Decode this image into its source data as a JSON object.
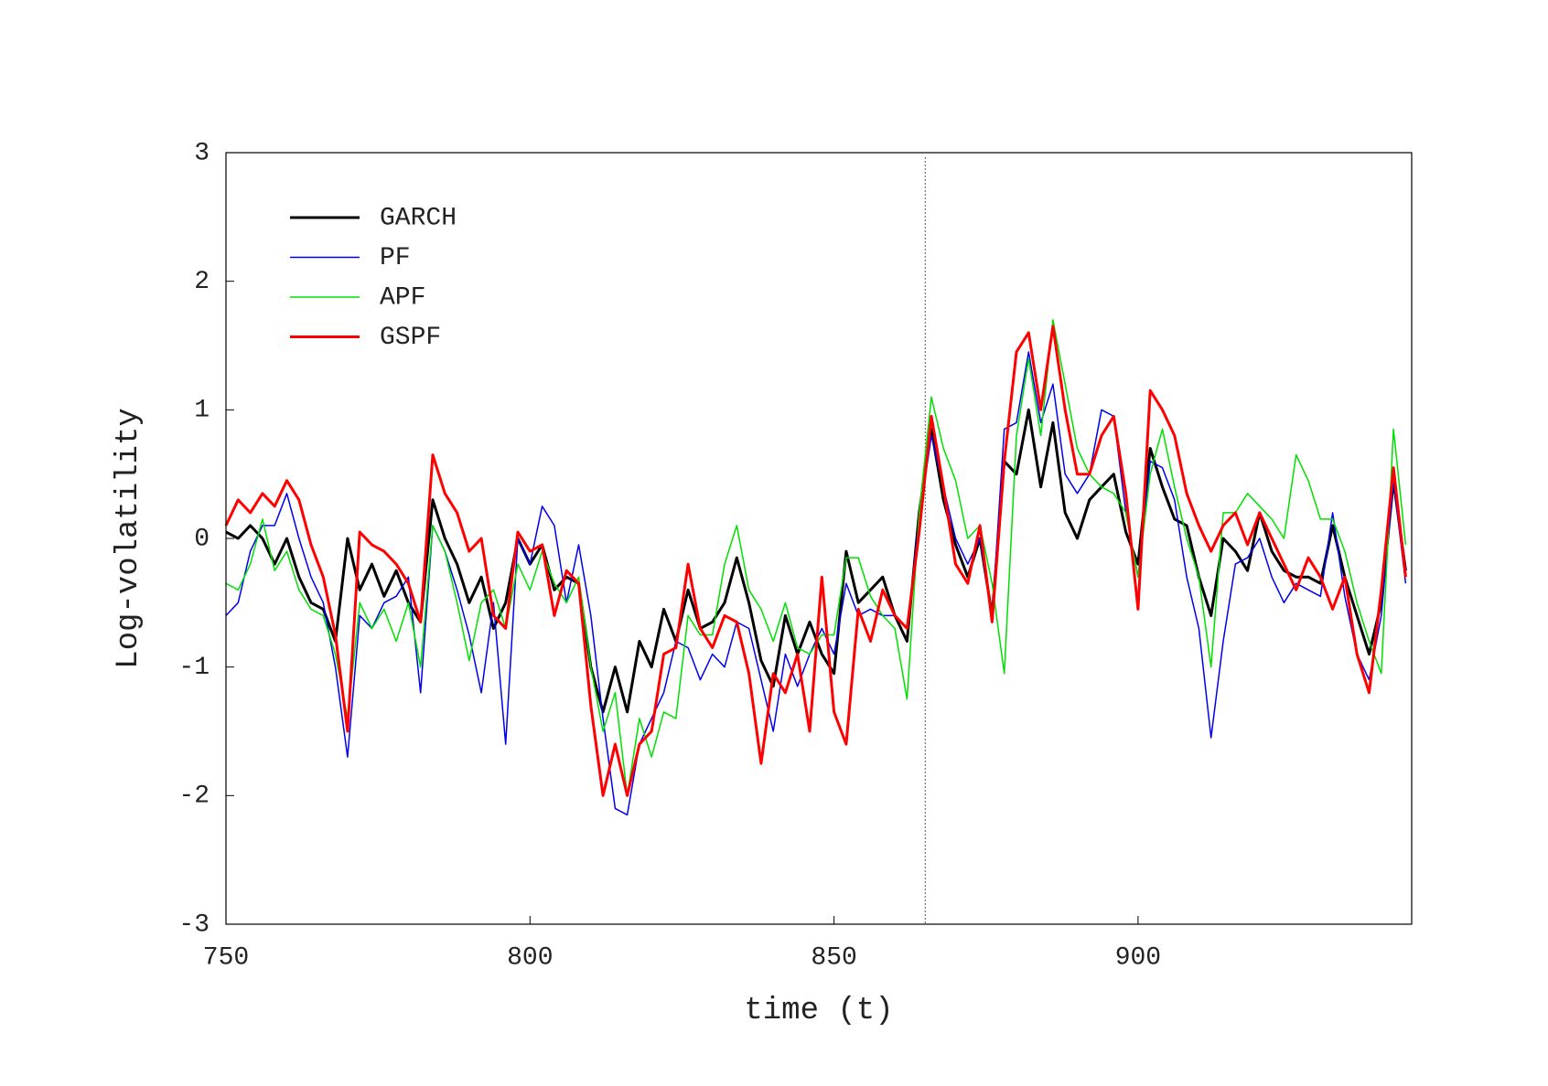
{
  "chart_data": {
    "type": "line",
    "xlabel": "time (t)",
    "ylabel": "Log-volatility",
    "xlim": [
      750,
      945
    ],
    "ylim": [
      -3,
      3
    ],
    "xticks": [
      750,
      800,
      850,
      900
    ],
    "yticks": [
      -3,
      -2,
      -1,
      0,
      1,
      2,
      3
    ],
    "vline": 865,
    "legend": "upper left",
    "x": [
      750,
      752,
      754,
      756,
      758,
      760,
      762,
      764,
      766,
      768,
      770,
      772,
      774,
      776,
      778,
      780,
      782,
      784,
      786,
      788,
      790,
      792,
      794,
      796,
      798,
      800,
      802,
      804,
      806,
      808,
      810,
      812,
      814,
      816,
      818,
      820,
      822,
      824,
      826,
      828,
      830,
      832,
      834,
      836,
      838,
      840,
      842,
      844,
      846,
      848,
      850,
      852,
      854,
      856,
      858,
      860,
      862,
      864,
      866,
      868,
      870,
      872,
      874,
      876,
      878,
      880,
      882,
      884,
      886,
      888,
      890,
      892,
      894,
      896,
      898,
      900,
      902,
      904,
      906,
      908,
      910,
      912,
      914,
      916,
      918,
      920,
      922,
      924,
      926,
      928,
      930,
      932,
      934,
      936,
      938,
      940,
      942,
      944
    ],
    "series": [
      {
        "name": "GARCH",
        "color": "#000000",
        "width": 3,
        "values": [
          0.05,
          0.0,
          0.1,
          0.0,
          -0.2,
          0.0,
          -0.3,
          -0.5,
          -0.55,
          -0.8,
          0.0,
          -0.4,
          -0.2,
          -0.45,
          -0.25,
          -0.5,
          -0.65,
          0.3,
          0.0,
          -0.2,
          -0.5,
          -0.3,
          -0.7,
          -0.5,
          0.0,
          -0.2,
          -0.05,
          -0.4,
          -0.3,
          -0.35,
          -1.0,
          -1.35,
          -1.0,
          -1.35,
          -0.8,
          -1.0,
          -0.55,
          -0.8,
          -0.4,
          -0.7,
          -0.65,
          -0.5,
          -0.15,
          -0.5,
          -0.95,
          -1.15,
          -0.6,
          -0.9,
          -0.65,
          -0.9,
          -1.05,
          -0.1,
          -0.5,
          -0.4,
          -0.3,
          -0.6,
          -0.8,
          0.2,
          0.85,
          0.3,
          -0.05,
          -0.3,
          0.0,
          -0.6,
          0.6,
          0.5,
          1.0,
          0.4,
          0.9,
          0.2,
          0.0,
          0.3,
          0.4,
          0.5,
          0.05,
          -0.2,
          0.7,
          0.4,
          0.15,
          0.1,
          -0.3,
          -0.6,
          0.0,
          -0.1,
          -0.25,
          0.2,
          -0.1,
          -0.25,
          -0.3,
          -0.3,
          -0.35,
          0.1,
          -0.3,
          -0.6,
          -0.9,
          -0.5,
          0.45,
          -0.25
        ]
      },
      {
        "name": "PF",
        "color": "#0000ee",
        "width": 1.5,
        "values": [
          -0.6,
          -0.5,
          -0.1,
          0.1,
          0.1,
          0.35,
          0.0,
          -0.3,
          -0.5,
          -1.0,
          -1.7,
          -0.6,
          -0.7,
          -0.5,
          -0.45,
          -0.3,
          -1.2,
          0.1,
          -0.1,
          -0.4,
          -0.75,
          -1.2,
          -0.5,
          -1.6,
          0.0,
          -0.2,
          0.25,
          0.1,
          -0.5,
          -0.05,
          -0.6,
          -1.4,
          -2.1,
          -2.15,
          -1.6,
          -1.4,
          -1.2,
          -0.8,
          -0.85,
          -1.1,
          -0.9,
          -1.0,
          -0.65,
          -0.7,
          -1.1,
          -1.5,
          -0.9,
          -1.15,
          -0.9,
          -0.7,
          -0.9,
          -0.35,
          -0.6,
          -0.55,
          -0.6,
          -0.6,
          -0.7,
          0.15,
          0.8,
          0.4,
          0.0,
          -0.2,
          0.0,
          -0.6,
          0.85,
          0.9,
          1.45,
          0.9,
          1.2,
          0.5,
          0.35,
          0.5,
          1.0,
          0.95,
          0.2,
          -0.3,
          0.6,
          0.55,
          0.3,
          -0.3,
          -0.7,
          -1.55,
          -0.8,
          -0.2,
          -0.15,
          0.0,
          -0.3,
          -0.5,
          -0.35,
          -0.4,
          -0.45,
          0.2,
          -0.45,
          -0.9,
          -1.1,
          -0.6,
          0.45,
          -0.35
        ]
      },
      {
        "name": "APF",
        "color": "#00e000",
        "width": 1.5,
        "values": [
          -0.35,
          -0.4,
          -0.2,
          0.15,
          -0.25,
          -0.1,
          -0.4,
          -0.55,
          -0.6,
          -0.9,
          -1.4,
          -0.5,
          -0.7,
          -0.55,
          -0.8,
          -0.5,
          -1.0,
          0.1,
          -0.1,
          -0.5,
          -0.95,
          -0.5,
          -0.4,
          -0.7,
          -0.2,
          -0.4,
          -0.1,
          -0.35,
          -0.5,
          -0.3,
          -1.0,
          -1.5,
          -1.2,
          -2.0,
          -1.4,
          -1.7,
          -1.35,
          -1.4,
          -0.6,
          -0.75,
          -0.75,
          -0.2,
          0.1,
          -0.4,
          -0.55,
          -0.8,
          -0.5,
          -0.85,
          -0.9,
          -0.75,
          -0.75,
          -0.15,
          -0.15,
          -0.45,
          -0.6,
          -0.7,
          -1.25,
          0.2,
          1.1,
          0.7,
          0.45,
          0.0,
          0.1,
          -0.35,
          -1.05,
          0.8,
          1.4,
          0.8,
          1.7,
          1.2,
          0.7,
          0.5,
          0.4,
          0.35,
          0.2,
          -0.3,
          0.5,
          0.85,
          0.4,
          0.0,
          -0.3,
          -1.0,
          0.2,
          0.2,
          0.35,
          0.25,
          0.15,
          0.0,
          0.65,
          0.45,
          0.15,
          0.15,
          -0.1,
          -0.5,
          -0.8,
          -1.05,
          0.85,
          -0.05
        ]
      },
      {
        "name": "GSPF",
        "color": "#ff0000",
        "width": 3,
        "values": [
          0.1,
          0.3,
          0.2,
          0.35,
          0.25,
          0.45,
          0.3,
          -0.05,
          -0.3,
          -0.75,
          -1.5,
          0.05,
          -0.05,
          -0.1,
          -0.2,
          -0.35,
          -0.65,
          0.65,
          0.35,
          0.2,
          -0.1,
          0.0,
          -0.6,
          -0.7,
          0.05,
          -0.1,
          -0.05,
          -0.6,
          -0.25,
          -0.35,
          -1.3,
          -2.0,
          -1.6,
          -2.0,
          -1.6,
          -1.5,
          -0.9,
          -0.85,
          -0.2,
          -0.7,
          -0.85,
          -0.6,
          -0.65,
          -1.05,
          -1.75,
          -1.05,
          -1.2,
          -0.9,
          -1.5,
          -0.3,
          -1.35,
          -1.6,
          -0.55,
          -0.8,
          -0.4,
          -0.6,
          -0.7,
          0.05,
          0.95,
          0.4,
          -0.2,
          -0.35,
          0.1,
          -0.65,
          0.6,
          1.45,
          1.6,
          1.0,
          1.65,
          1.0,
          0.5,
          0.5,
          0.8,
          0.95,
          0.35,
          -0.55,
          1.15,
          1.0,
          0.8,
          0.35,
          0.1,
          -0.1,
          0.1,
          0.2,
          -0.05,
          0.2,
          0.0,
          -0.2,
          -0.4,
          -0.15,
          -0.3,
          -0.55,
          -0.3,
          -0.9,
          -1.2,
          -0.4,
          0.55,
          -0.3
        ]
      }
    ]
  }
}
